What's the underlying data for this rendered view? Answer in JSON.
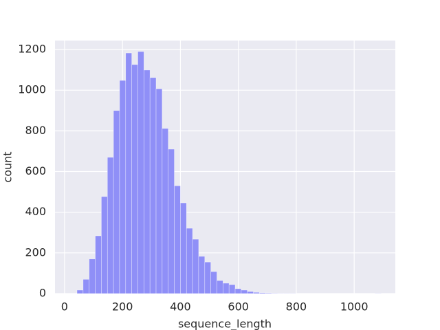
{
  "chart_data": {
    "type": "histogram",
    "x_label": "sequence_length",
    "y_label": "count",
    "bins": [
      43,
      64,
      85,
      106,
      127,
      148,
      169,
      190,
      211,
      232,
      253,
      274,
      295,
      316,
      337,
      358,
      379,
      400,
      421,
      442,
      463,
      484,
      505,
      526,
      547,
      568,
      589,
      610,
      631,
      652,
      673,
      694,
      715,
      736,
      757,
      778,
      799,
      820,
      841,
      862,
      883,
      904,
      925,
      946,
      967,
      988,
      1009,
      1030,
      1051,
      1072,
      1093
    ],
    "counts": [
      17,
      70,
      170,
      284,
      477,
      670,
      900,
      1048,
      1183,
      1126,
      1190,
      1099,
      1062,
      1007,
      812,
      710,
      530,
      446,
      321,
      267,
      183,
      155,
      108,
      64,
      51,
      44,
      24,
      17,
      10,
      6,
      4,
      3,
      2,
      1,
      1,
      1,
      0,
      0,
      0,
      0,
      0,
      0,
      0,
      0,
      0,
      0,
      0,
      0,
      0,
      1
    ],
    "color": "#8f8ff7",
    "xlim": [
      -33,
      1142
    ],
    "ylim": [
      0,
      1244
    ],
    "xticks": [
      0,
      200,
      400,
      600,
      800,
      1000
    ],
    "yticks": [
      0,
      200,
      400,
      600,
      800,
      1000,
      1200
    ],
    "grid": true
  }
}
